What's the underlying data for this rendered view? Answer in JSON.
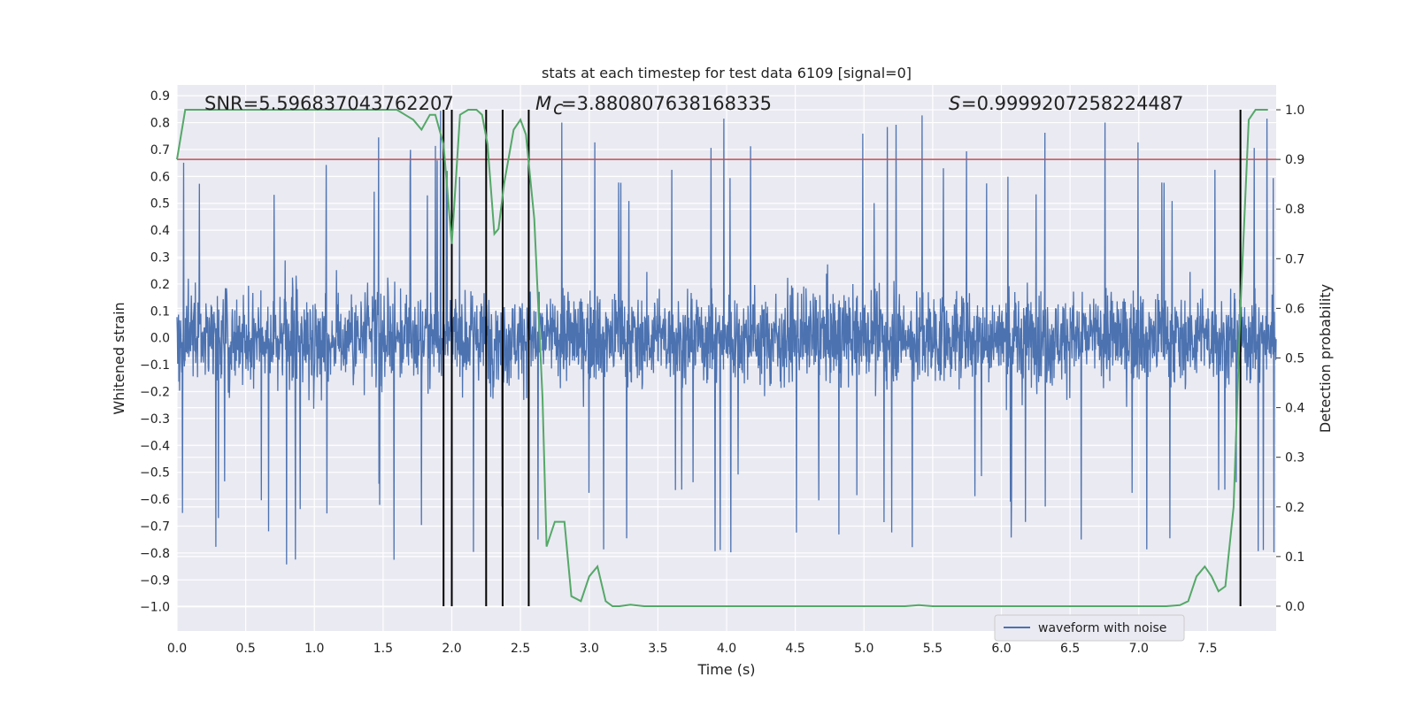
{
  "chart_data": {
    "type": "line",
    "title": "stats at each timestep for test data 6109 [signal=0]",
    "xlabel": "Time (s)",
    "ylabel_left": "Whitened strain",
    "ylabel_right": "Detection probability",
    "xlim": [
      0.0,
      8.0
    ],
    "ylim_left": [
      -1.09,
      0.94
    ],
    "ylim_right": [
      -0.05,
      1.05
    ],
    "x_ticks": [
      0.0,
      0.5,
      1.0,
      1.5,
      2.0,
      2.5,
      3.0,
      3.5,
      4.0,
      4.5,
      5.0,
      5.5,
      6.0,
      6.5,
      7.0,
      7.5
    ],
    "y_left_ticks": [
      0.9,
      0.8,
      0.7,
      0.6,
      0.5,
      0.4,
      0.3,
      0.2,
      0.1,
      0.0,
      -0.1,
      -0.2,
      -0.3,
      -0.4,
      -0.5,
      -0.6,
      -0.7,
      -0.8,
      -0.9,
      -1.0
    ],
    "y_right_ticks": [
      1.0,
      0.9,
      0.8,
      0.7,
      0.6,
      0.5,
      0.4,
      0.3,
      0.2,
      0.1,
      0.0
    ],
    "grid": true,
    "legend_position": "lower-right",
    "annotations": {
      "snr": "SNR=5.596837043762207",
      "mc": "=3.880807638168335",
      "s": "=0.9999207258224487"
    },
    "threshold": 0.9,
    "event_markers_x": [
      1.94,
      2.0,
      2.25,
      2.37,
      2.56,
      7.74
    ],
    "series": [
      {
        "name": "waveform with noise",
        "axis": "left",
        "color": "#4c72b0",
        "sample_count": 3000,
        "typical_amplitude": 0.3,
        "spike_max": 0.85,
        "spike_min": -1.0
      },
      {
        "axis": "right",
        "color": "#55a868",
        "x": [
          0.0,
          0.06,
          0.2,
          0.4,
          0.6,
          0.8,
          1.0,
          1.2,
          1.4,
          1.6,
          1.66,
          1.72,
          1.78,
          1.84,
          1.88,
          1.94,
          2.0,
          2.06,
          2.12,
          2.18,
          2.22,
          2.26,
          2.31,
          2.34,
          2.38,
          2.45,
          2.5,
          2.54,
          2.6,
          2.66,
          2.69,
          2.75,
          2.82,
          2.87,
          2.94,
          3.0,
          3.06,
          3.12,
          3.17,
          3.22,
          3.3,
          3.4,
          3.5,
          3.7,
          3.9,
          4.1,
          4.3,
          4.5,
          4.7,
          4.9,
          5.1,
          5.3,
          5.4,
          5.5,
          5.7,
          5.9,
          6.1,
          6.3,
          6.5,
          6.7,
          6.9,
          7.1,
          7.2,
          7.3,
          7.36,
          7.42,
          7.48,
          7.53,
          7.58,
          7.63,
          7.69,
          7.74,
          7.8,
          7.85,
          7.9,
          7.94
        ],
        "values": [
          0.9,
          1.0,
          1.0,
          1.0,
          1.0,
          1.0,
          1.0,
          1.0,
          1.0,
          1.0,
          0.99,
          0.98,
          0.96,
          0.99,
          0.99,
          0.93,
          0.73,
          0.99,
          1.0,
          1.0,
          0.99,
          0.93,
          0.75,
          0.76,
          0.85,
          0.96,
          0.98,
          0.95,
          0.78,
          0.42,
          0.12,
          0.17,
          0.17,
          0.02,
          0.01,
          0.06,
          0.08,
          0.01,
          0.0,
          0.0,
          0.003,
          0.0,
          0.0,
          0.0,
          0.0,
          0.0,
          0.0,
          0.0,
          0.0,
          0.0,
          0.0,
          0.0,
          0.002,
          0.0,
          0.0,
          0.0,
          0.0,
          0.0,
          0.0,
          0.0,
          0.0,
          0.0,
          0.0,
          0.002,
          0.01,
          0.06,
          0.08,
          0.06,
          0.03,
          0.04,
          0.2,
          0.6,
          0.98,
          1.0,
          1.0,
          1.0
        ]
      }
    ]
  }
}
